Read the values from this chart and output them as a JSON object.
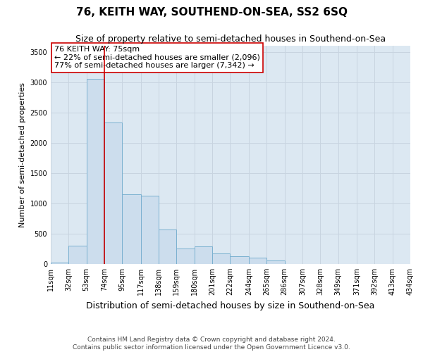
{
  "title": "76, KEITH WAY, SOUTHEND-ON-SEA, SS2 6SQ",
  "subtitle": "Size of property relative to semi-detached houses in Southend-on-Sea",
  "xlabel": "Distribution of semi-detached houses by size in Southend-on-Sea",
  "ylabel": "Number of semi-detached properties",
  "footer_line1": "Contains HM Land Registry data © Crown copyright and database right 2024.",
  "footer_line2": "Contains public sector information licensed under the Open Government Licence v3.0.",
  "annotation_line1": "76 KEITH WAY: 75sqm",
  "annotation_line2": "← 22% of semi-detached houses are smaller (2,096)",
  "annotation_line3": "77% of semi-detached houses are larger (7,342) →",
  "bar_left_edges": [
    11,
    32,
    53,
    74,
    95,
    117,
    138,
    159,
    180,
    201,
    222,
    244,
    265,
    286,
    307,
    328,
    349,
    371,
    392,
    413
  ],
  "bar_widths": [
    21,
    21,
    21,
    21,
    22,
    21,
    21,
    21,
    21,
    21,
    22,
    21,
    21,
    21,
    21,
    21,
    22,
    21,
    21,
    21
  ],
  "bar_heights": [
    25,
    305,
    3060,
    2340,
    1150,
    1130,
    570,
    250,
    285,
    175,
    130,
    100,
    55,
    5,
    0,
    0,
    0,
    0,
    0,
    0
  ],
  "tick_labels": [
    "11sqm",
    "32sqm",
    "53sqm",
    "74sqm",
    "95sqm",
    "117sqm",
    "138sqm",
    "159sqm",
    "180sqm",
    "201sqm",
    "222sqm",
    "244sqm",
    "265sqm",
    "286sqm",
    "307sqm",
    "328sqm",
    "349sqm",
    "371sqm",
    "392sqm",
    "413sqm",
    "434sqm"
  ],
  "bar_color": "#ccdded",
  "bar_edge_color": "#7ab0d0",
  "vline_color": "#cc0000",
  "vline_x": 74,
  "ylim": [
    0,
    3600
  ],
  "yticks": [
    0,
    500,
    1000,
    1500,
    2000,
    2500,
    3000,
    3500
  ],
  "grid_color": "#c8d4e0",
  "bg_color": "#dce8f2",
  "annotation_bg": "#ffffff",
  "annotation_border": "#cc0000",
  "title_fontsize": 11,
  "subtitle_fontsize": 9,
  "xlabel_fontsize": 9,
  "ylabel_fontsize": 8,
  "tick_fontsize": 7,
  "annotation_fontsize": 8,
  "footer_fontsize": 6.5
}
